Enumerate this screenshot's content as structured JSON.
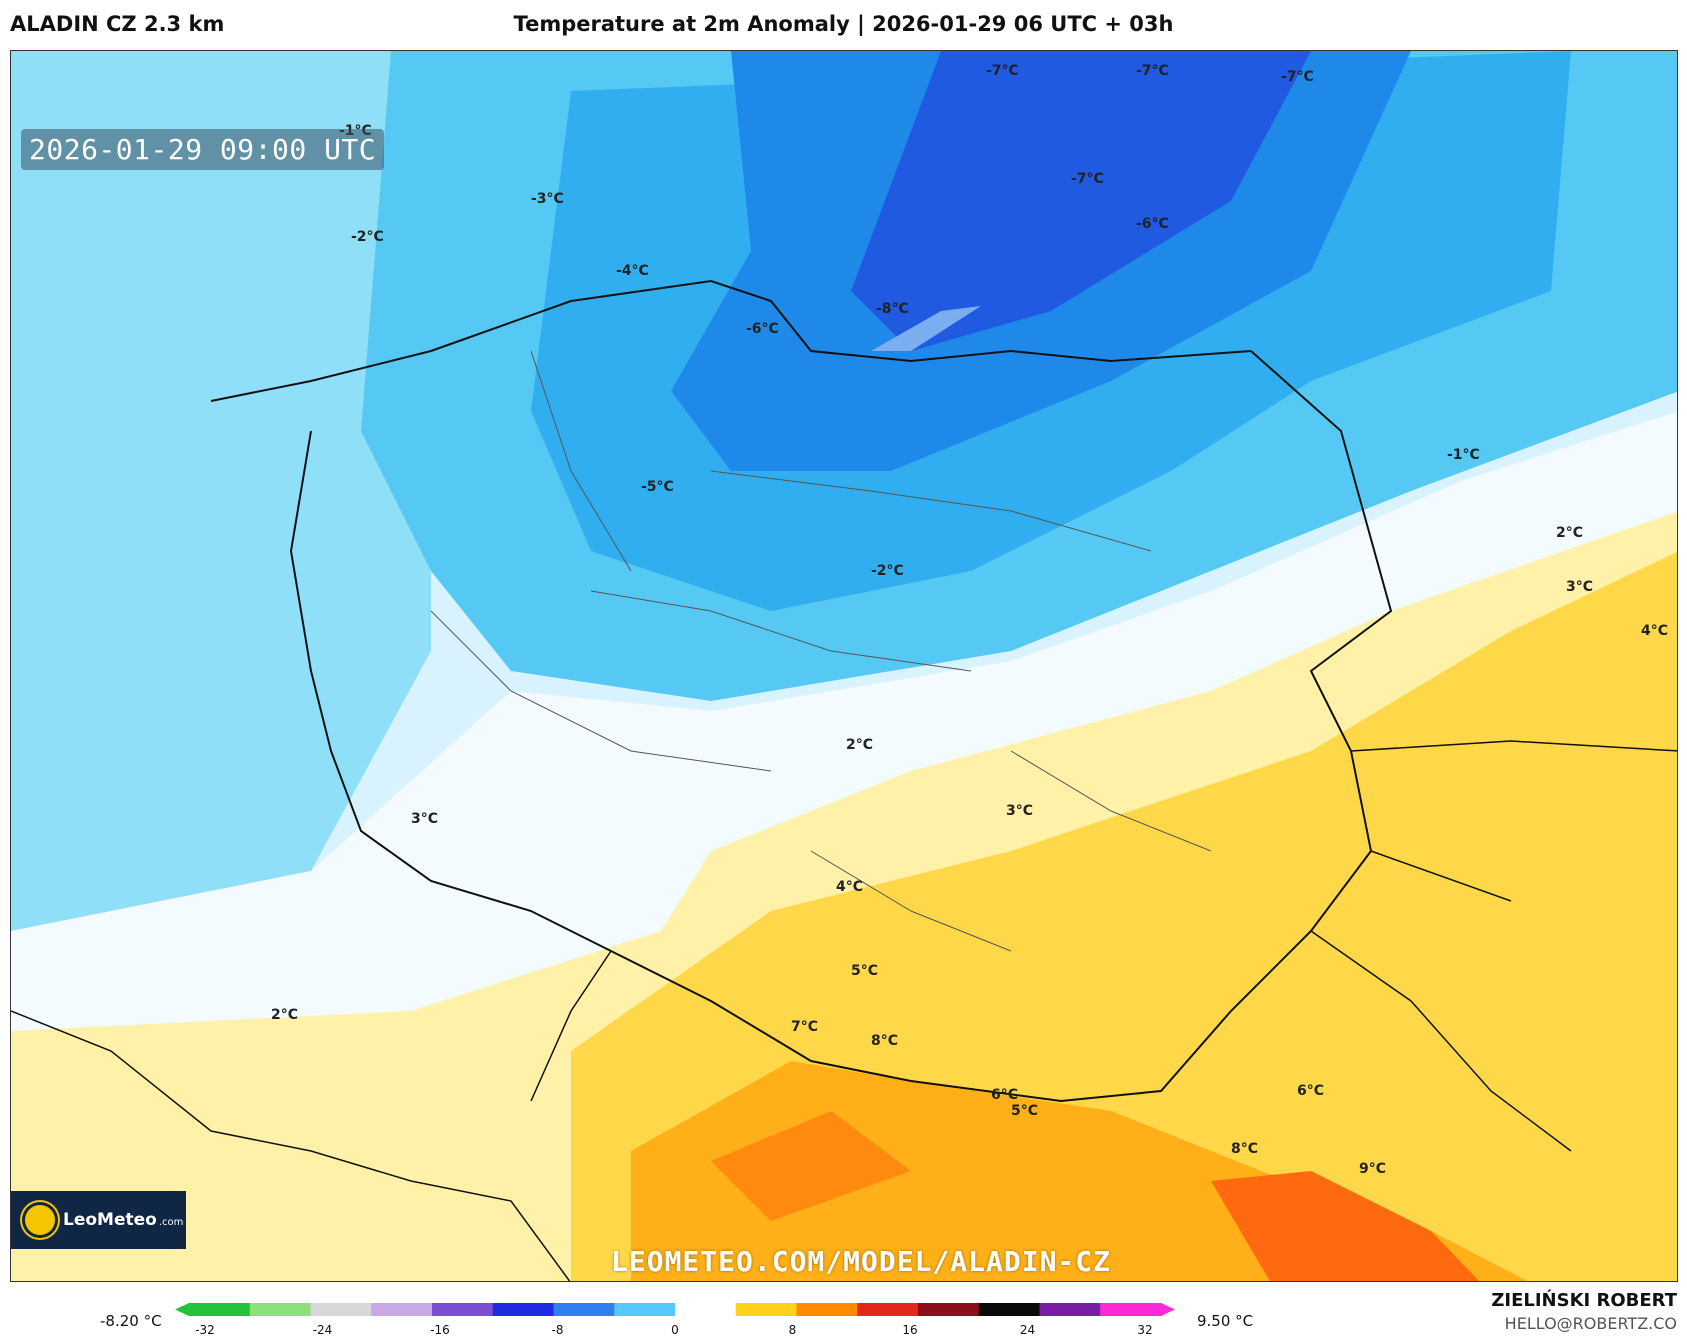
{
  "header": {
    "model": "ALADIN CZ 2.3 km",
    "title": "Temperature at 2m Anomaly | 2026-01-29 06 UTC + 03h"
  },
  "map": {
    "valid_time": "2026-01-29 09:00 UTC",
    "watermark": "LEOMETEO.COM/MODEL/ALADIN-CZ",
    "logo_text": "LeoMeteo",
    "logo_domain": ".com",
    "labels": [
      "-7°C",
      "-7°C",
      "-7°C",
      "-7°C",
      "-6°C",
      "-2°C",
      "-1°C",
      "-4°C",
      "-3°C",
      "-6°C",
      "-8°C",
      "-2°C",
      "2°C",
      "3°C",
      "4°C",
      "5°C",
      "7°C",
      "8°C",
      "9°C",
      "6°C",
      "-5°C",
      "-1°C",
      "2°C",
      "3°C",
      "4°C",
      "2°C",
      "3°C",
      "5°C",
      "6°C",
      "8°C"
    ]
  },
  "scale": {
    "min_label": "-8.20 °C",
    "max_label": "9.50 °C",
    "ticks": [
      "-32",
      "-24",
      "-16",
      "-8",
      "0",
      "8",
      "16",
      "24",
      "32"
    ],
    "colors": [
      "#22c23a",
      "#8ee07a",
      "#d7d7d7",
      "#c9a8e6",
      "#7b4fd4",
      "#1f2be0",
      "#2e7ff0",
      "#54c8ff",
      "#ffffff",
      "#ffd21a",
      "#ff8a00",
      "#e2281a",
      "#8b0e1a",
      "#0a0a0a",
      "#7a1ea8",
      "#ff2ad7"
    ]
  },
  "author": {
    "name": "ZIELIŃSKI ROBERT",
    "email": "HELLO@ROBERTZ.CO"
  }
}
